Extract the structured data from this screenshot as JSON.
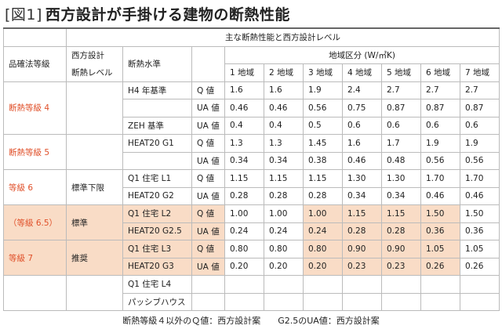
{
  "title": {
    "label": "[図1]",
    "text": "西方設計が手掛ける建物の断熱性能"
  },
  "table": {
    "header": {
      "span_title": "主な断熱性能と西方設計レベル",
      "grade": "品確法等級",
      "level": [
        "西方設計",
        "断熱レベル"
      ],
      "standard": "断熱水準",
      "region_title": "地域区分 (W/㎡K)",
      "regions": [
        "1 地域",
        "2 地域",
        "3 地域",
        "4 地域",
        "5 地域",
        "6 地域",
        "7 地域"
      ]
    },
    "groups": [
      {
        "grade": "断熱等級 4",
        "rows": [
          {
            "standard": "H4 年基準",
            "metric": "Q 値",
            "values": [
              "1.6",
              "1.6",
              "1.9",
              "2.4",
              "2.7",
              "2.7",
              "2.7"
            ]
          },
          {
            "metric": "UA 値",
            "values": [
              "0.46",
              "0.46",
              "0.56",
              "0.75",
              "0.87",
              "0.87",
              "0.87"
            ]
          },
          {
            "standard": "ZEH 基準",
            "metric": "UA 値",
            "values": [
              "0.4",
              "0.4",
              "0.5",
              "0.6",
              "0.6",
              "0.6",
              "0.6"
            ]
          }
        ]
      },
      {
        "grade": "断熱等級 5",
        "rows": [
          {
            "standard": "HEAT20 G1",
            "metric": "Q 値",
            "values": [
              "1.3",
              "1.3",
              "1.45",
              "1.6",
              "1.7",
              "1.9",
              "1.9"
            ]
          },
          {
            "metric": "UA 値",
            "values": [
              "0.34",
              "0.34",
              "0.38",
              "0.46",
              "0.48",
              "0.56",
              "0.56"
            ]
          }
        ]
      },
      {
        "grade": "等級 6",
        "level": "標準下限",
        "rows": [
          {
            "standard": "Q1 住宅 L1",
            "metric": "Q 値",
            "values": [
              "1.15",
              "1.15",
              "1.15",
              "1.30",
              "1.30",
              "1.70",
              "1.70"
            ]
          },
          {
            "standard": "HEAT20 G2",
            "metric": "UA 値",
            "values": [
              "0.28",
              "0.28",
              "0.28",
              "0.34",
              "0.34",
              "0.46",
              "0.46"
            ]
          }
        ]
      },
      {
        "grade": "（等級 6.5）",
        "level": "標準",
        "highlight": true,
        "rows": [
          {
            "standard": "Q1 住宅 L2",
            "metric": "Q 値",
            "values": [
              "1.00",
              "1.00",
              "1.00",
              "1.15",
              "1.15",
              "1.50",
              "1.50"
            ]
          },
          {
            "standard": "HEAT20 G2.5",
            "metric": "UA 値",
            "values": [
              "0.24",
              "0.24",
              "0.24",
              "0.28",
              "0.28",
              "0.36",
              "0.36"
            ]
          }
        ]
      },
      {
        "grade": "等級 7",
        "level": "推奨",
        "highlight": true,
        "rows": [
          {
            "standard": "Q1 住宅 L3",
            "metric": "Q 値",
            "values": [
              "0.80",
              "0.80",
              "0.80",
              "0.90",
              "0.90",
              "1.05",
              "1.05"
            ]
          },
          {
            "standard": "HEAT20 G3",
            "metric": "UA 値",
            "values": [
              "0.20",
              "0.20",
              "0.20",
              "0.23",
              "0.23",
              "0.26",
              "0.26"
            ]
          }
        ]
      },
      {
        "rows": [
          {
            "standard": "Q1 住宅 L4"
          },
          {
            "standard": "パッシブハウス"
          }
        ]
      }
    ]
  },
  "caption": "断熱等級４以外のＱ値：西方設計案　　G2.5のUA値：西方設計案"
}
